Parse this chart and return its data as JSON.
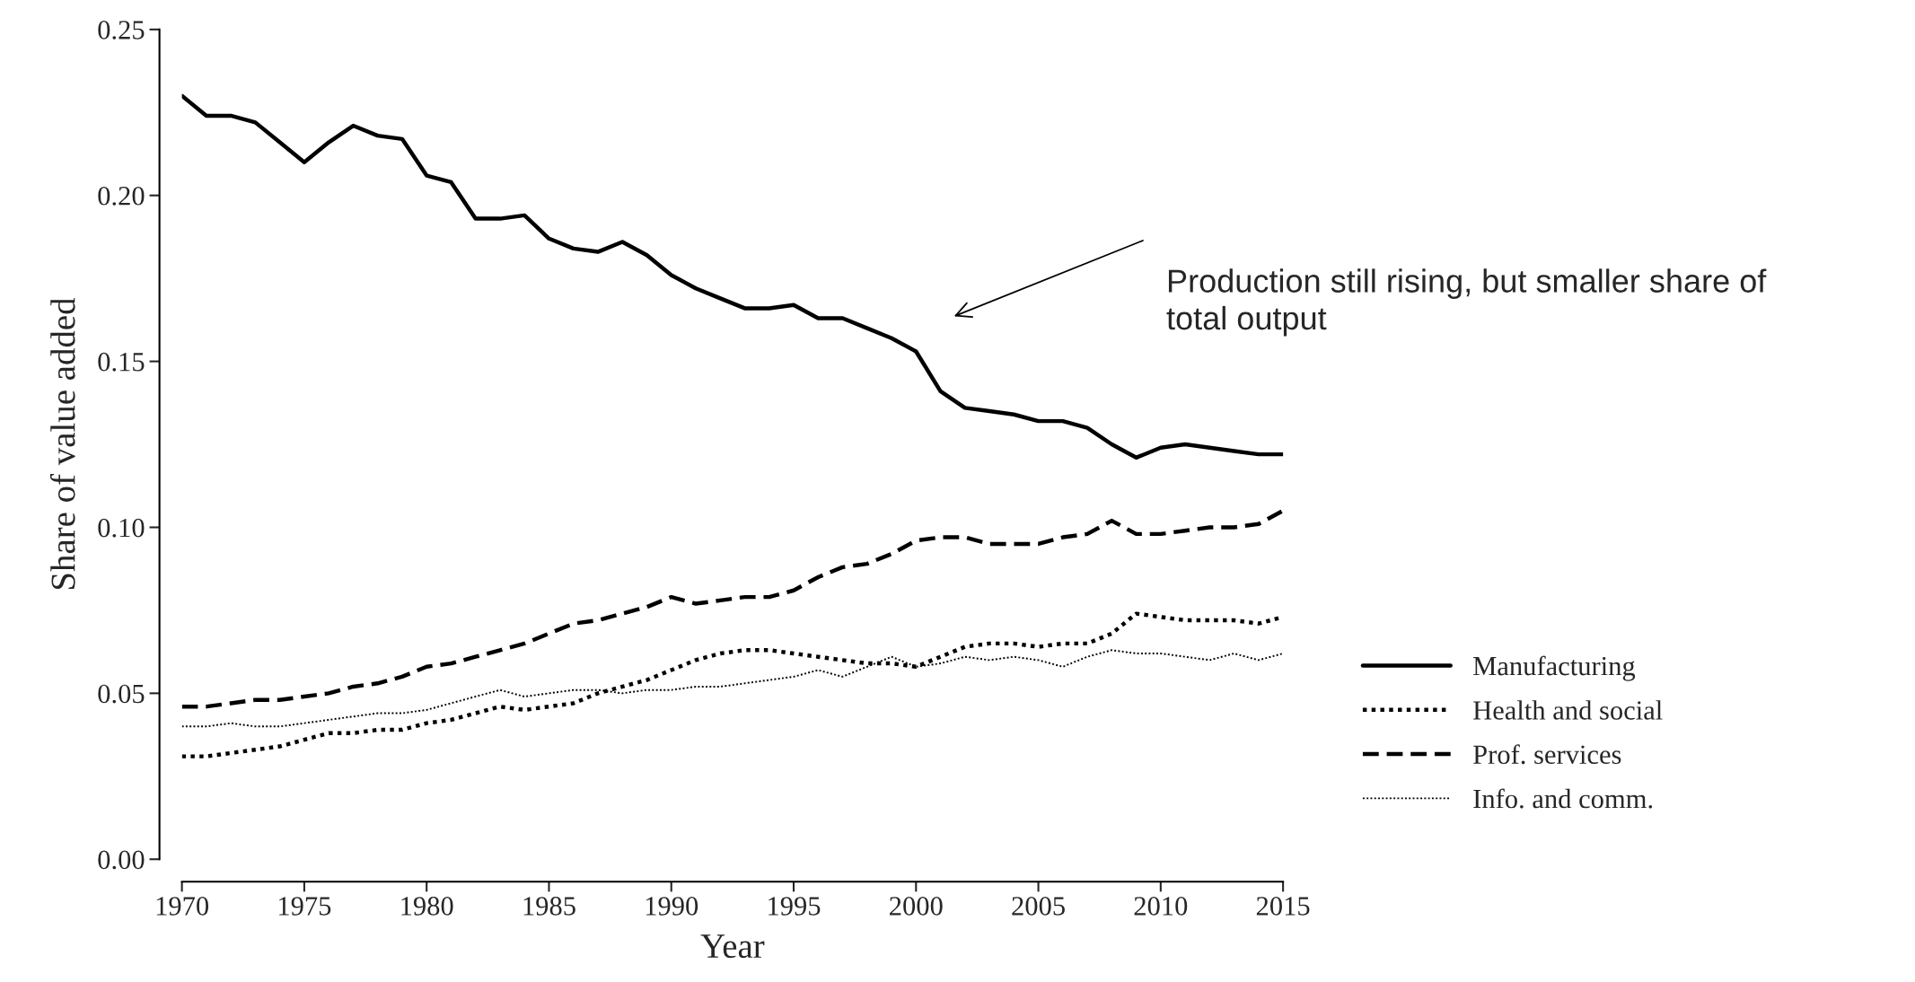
{
  "chart_data": {
    "type": "line",
    "xlabel": "Year",
    "ylabel": "Share of value added",
    "x": [
      1970,
      1971,
      1972,
      1973,
      1974,
      1975,
      1976,
      1977,
      1978,
      1979,
      1980,
      1981,
      1982,
      1983,
      1984,
      1985,
      1986,
      1987,
      1988,
      1989,
      1990,
      1991,
      1992,
      1993,
      1994,
      1995,
      1996,
      1997,
      1998,
      1999,
      2000,
      2001,
      2002,
      2003,
      2004,
      2005,
      2006,
      2007,
      2008,
      2009,
      2010,
      2011,
      2012,
      2013,
      2014,
      2015
    ],
    "series": [
      {
        "name": "Manufacturing",
        "color": "#000000",
        "line_style": "solid",
        "values": [
          0.23,
          0.224,
          0.224,
          0.222,
          0.216,
          0.21,
          0.216,
          0.221,
          0.218,
          0.217,
          0.206,
          0.204,
          0.193,
          0.193,
          0.194,
          0.187,
          0.184,
          0.183,
          0.186,
          0.182,
          0.176,
          0.172,
          0.169,
          0.166,
          0.166,
          0.167,
          0.163,
          0.163,
          0.16,
          0.157,
          0.153,
          0.141,
          0.136,
          0.135,
          0.134,
          0.132,
          0.132,
          0.13,
          0.125,
          0.121,
          0.124,
          0.125,
          0.124,
          0.123,
          0.122,
          0.122
        ]
      },
      {
        "name": "Health and social",
        "color": "#000000",
        "line_style": "dotted",
        "values": [
          0.031,
          0.031,
          0.032,
          0.033,
          0.034,
          0.036,
          0.038,
          0.038,
          0.039,
          0.039,
          0.041,
          0.042,
          0.044,
          0.046,
          0.045,
          0.046,
          0.047,
          0.05,
          0.052,
          0.054,
          0.057,
          0.06,
          0.062,
          0.063,
          0.063,
          0.062,
          0.061,
          0.06,
          0.059,
          0.059,
          0.058,
          0.061,
          0.064,
          0.065,
          0.065,
          0.064,
          0.065,
          0.065,
          0.068,
          0.074,
          0.073,
          0.072,
          0.072,
          0.072,
          0.071,
          0.073
        ]
      },
      {
        "name": "Prof. services",
        "color": "#000000",
        "line_style": "dashed",
        "values": [
          0.046,
          0.046,
          0.047,
          0.048,
          0.048,
          0.049,
          0.05,
          0.052,
          0.053,
          0.055,
          0.058,
          0.059,
          0.061,
          0.063,
          0.065,
          0.068,
          0.071,
          0.072,
          0.074,
          0.076,
          0.079,
          0.077,
          0.078,
          0.079,
          0.079,
          0.081,
          0.085,
          0.088,
          0.089,
          0.092,
          0.096,
          0.097,
          0.097,
          0.095,
          0.095,
          0.095,
          0.097,
          0.098,
          0.102,
          0.098,
          0.098,
          0.099,
          0.1,
          0.1,
          0.101,
          0.105
        ]
      },
      {
        "name": "Info. and comm.",
        "color": "#000000",
        "line_style": "dotted",
        "values": [
          0.04,
          0.04,
          0.041,
          0.04,
          0.04,
          0.041,
          0.042,
          0.043,
          0.044,
          0.044,
          0.045,
          0.047,
          0.049,
          0.051,
          0.049,
          0.05,
          0.051,
          0.051,
          0.05,
          0.051,
          0.051,
          0.052,
          0.052,
          0.053,
          0.054,
          0.055,
          0.057,
          0.055,
          0.058,
          0.061,
          0.058,
          0.059,
          0.061,
          0.06,
          0.061,
          0.06,
          0.058,
          0.061,
          0.063,
          0.062,
          0.062,
          0.061,
          0.06,
          0.062,
          0.06,
          0.062
        ]
      }
    ],
    "xlim": [
      1970,
      2015
    ],
    "xticks": [
      1970,
      1975,
      1980,
      1985,
      1990,
      1995,
      2000,
      2005,
      2010,
      2015
    ],
    "ylim": [
      0,
      0.25
    ],
    "yticks": [
      {
        "value": 0,
        "label": "0.00"
      },
      {
        "value": 0.05,
        "label": "0.05"
      },
      {
        "value": 0.1,
        "label": "0.10"
      },
      {
        "value": 0.15,
        "label": "0.15"
      },
      {
        "value": 0.2,
        "label": "0.20"
      },
      {
        "value": 0.25,
        "label": "0.25"
      }
    ],
    "annotations": [
      "Production still rising, but smaller share of\ntotal output"
    ],
    "legend": "right",
    "grid": false
  }
}
